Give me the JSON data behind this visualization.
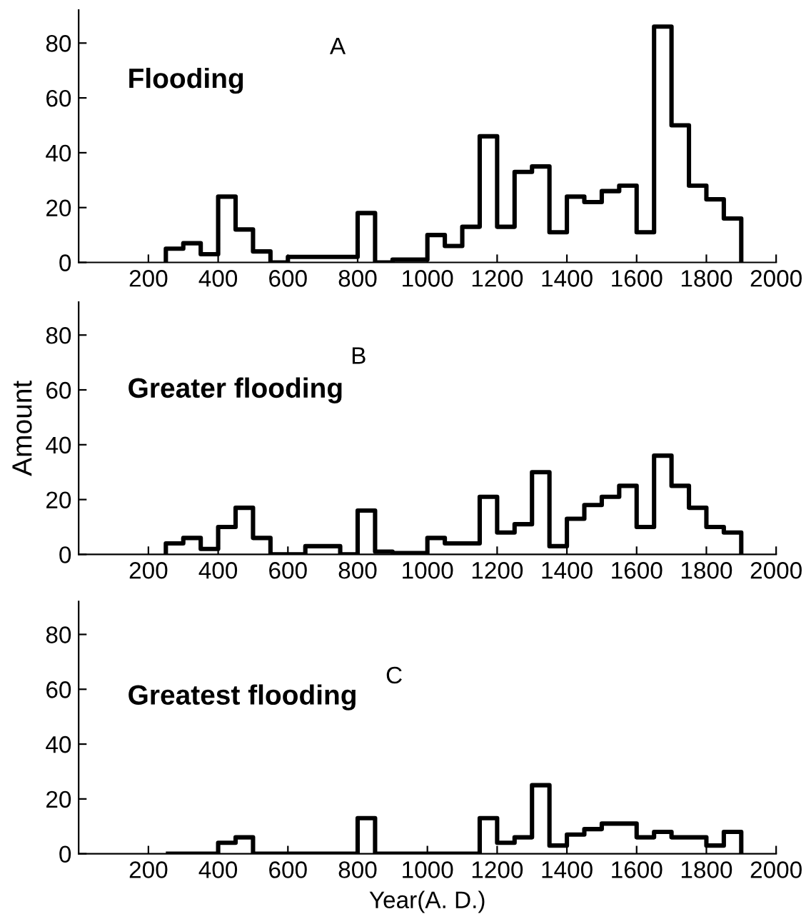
{
  "chart_data": [
    {
      "type": "histogram",
      "annotations": [
        "Flooding",
        "A"
      ],
      "bins": [
        250,
        300,
        350,
        400,
        450,
        500,
        550,
        600,
        650,
        700,
        750,
        800,
        850,
        900,
        950,
        1000,
        1050,
        1100,
        1150,
        1200,
        1250,
        1300,
        1350,
        1400,
        1450,
        1500,
        1550,
        1600,
        1650,
        1700,
        1750,
        1800,
        1850,
        1900
      ],
      "values": [
        5,
        7,
        3,
        24,
        12,
        4,
        0,
        2,
        2,
        2,
        2,
        18,
        0,
        1,
        1,
        10,
        6,
        13,
        46,
        13,
        33,
        35,
        11,
        24,
        22,
        26,
        28,
        11,
        86,
        50,
        28,
        23,
        16
      ],
      "color": "#000000",
      "xlim": [
        0,
        2000
      ],
      "ylim": [
        0,
        92
      ],
      "xticks": [
        200,
        400,
        600,
        800,
        1000,
        1200,
        1400,
        1600,
        1800,
        2000
      ],
      "yticks": [
        0,
        20,
        40,
        60,
        80
      ],
      "grid": false
    },
    {
      "type": "histogram",
      "ylabel": "Amount",
      "annotations": [
        "Greater flooding",
        "B"
      ],
      "bins": [
        250,
        300,
        350,
        400,
        450,
        500,
        550,
        600,
        650,
        700,
        750,
        800,
        850,
        900,
        950,
        1000,
        1050,
        1100,
        1150,
        1200,
        1250,
        1300,
        1350,
        1400,
        1450,
        1500,
        1550,
        1600,
        1650,
        1700,
        1750,
        1800,
        1850,
        1900
      ],
      "values": [
        4,
        6,
        2,
        10,
        17,
        6,
        0,
        0,
        3,
        3,
        0,
        16,
        1,
        0.5,
        0.5,
        6,
        4,
        4,
        21,
        8,
        11,
        30,
        3,
        13,
        18,
        21,
        25,
        10,
        36,
        25,
        17,
        10,
        8
      ],
      "color": "#000000",
      "xlim": [
        0,
        2000
      ],
      "ylim": [
        0,
        92
      ],
      "xticks": [
        200,
        400,
        600,
        800,
        1000,
        1200,
        1400,
        1600,
        1800,
        2000
      ],
      "yticks": [
        0,
        20,
        40,
        60,
        80
      ],
      "grid": false
    },
    {
      "type": "histogram",
      "xlabel": "Year(A. D.)",
      "annotations": [
        "Greatest flooding",
        "C"
      ],
      "bins": [
        250,
        300,
        350,
        400,
        450,
        500,
        550,
        600,
        650,
        700,
        750,
        800,
        850,
        900,
        950,
        1000,
        1050,
        1100,
        1150,
        1200,
        1250,
        1300,
        1350,
        1400,
        1450,
        1500,
        1550,
        1600,
        1650,
        1700,
        1750,
        1800,
        1850,
        1900
      ],
      "values": [
        0,
        0,
        0,
        4,
        6,
        0,
        0,
        0,
        0,
        0,
        0,
        13,
        0,
        0,
        0,
        0,
        0,
        0,
        13,
        4,
        6,
        25,
        3,
        7,
        9,
        11,
        11,
        6,
        8,
        6,
        6,
        3,
        8
      ],
      "color": "#000000",
      "xlim": [
        0,
        2000
      ],
      "ylim": [
        0,
        92
      ],
      "xticks": [
        200,
        400,
        600,
        800,
        1000,
        1200,
        1400,
        1600,
        1800,
        2000
      ],
      "yticks": [
        0,
        20,
        40,
        60,
        80
      ],
      "grid": false
    }
  ]
}
